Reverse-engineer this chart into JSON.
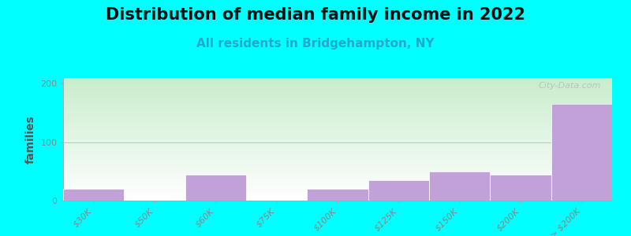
{
  "title": "Distribution of median family income in 2022",
  "subtitle": "All residents in Bridgehampton, NY",
  "ylabel": "families",
  "categories": [
    "$30K",
    "$50K",
    "$60K",
    "$75K",
    "$100K",
    "$125K",
    "$150K",
    "$200K",
    "> $200K"
  ],
  "values": [
    20,
    0,
    45,
    0,
    20,
    35,
    50,
    45,
    165
  ],
  "bar_color": "#c2a0d8",
  "background_color": "#00ffff",
  "plot_bg_top_left": "#c8edcc",
  "plot_bg_bottom_right": "#ffffff",
  "gridline_color": "#e8b8c0",
  "ylim": [
    0,
    210
  ],
  "yticks": [
    0,
    100,
    200
  ],
  "watermark": "City-Data.com",
  "title_fontsize": 15,
  "subtitle_fontsize": 11,
  "ylabel_fontsize": 10,
  "tick_fontsize": 8,
  "tick_color": "#888888"
}
